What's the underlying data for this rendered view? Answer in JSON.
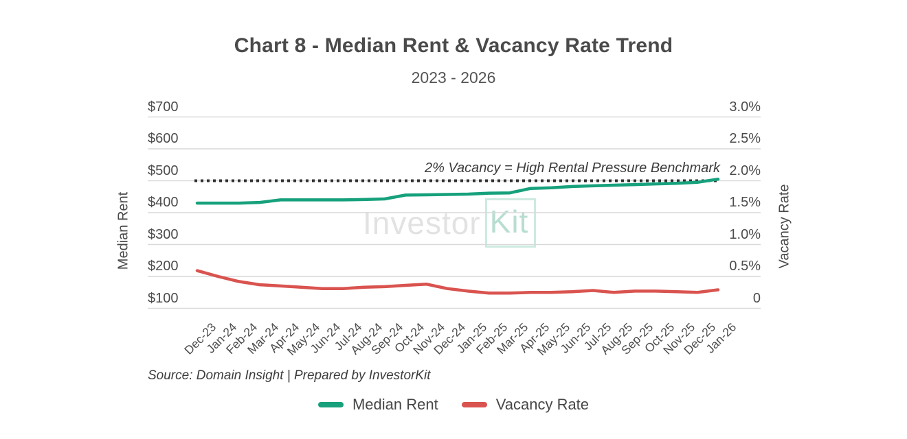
{
  "header": {
    "title": "Chart 8 - Median Rent & Vacancy Rate Trend",
    "subtitle": "2023 - 2026"
  },
  "axes": {
    "left_title": "Median Rent",
    "right_title": "Vacancy Rate",
    "left_ticks": [
      "$700",
      "$600",
      "$500",
      "$400",
      "$300",
      "$200",
      "$100"
    ],
    "right_ticks": [
      "3.0%",
      "2.5%",
      "2.0%",
      "1.5%",
      "1.0%",
      "0.5%",
      "0"
    ]
  },
  "annotation": {
    "benchmark_label": "2% Vacancy = High Rental Pressure Benchmark"
  },
  "watermark": {
    "part1": "Investor",
    "part2": "Kit"
  },
  "source": {
    "text": "Source: Domain Insight | Prepared by InvestorKit"
  },
  "legend": [
    {
      "label": "Median Rent",
      "color": "#16a17c"
    },
    {
      "label": "Vacancy Rate",
      "color": "#d9534f"
    }
  ],
  "colors": {
    "median_rent": "#16a17c",
    "vacancy_rate": "#d9534f",
    "benchmark": "#2f2f2f",
    "grid": "#d9d9d9",
    "title_text": "#4a4a4a"
  },
  "chart_data": {
    "type": "line",
    "title": "Chart 8 - Median Rent & Vacancy Rate Trend",
    "subtitle": "2023 - 2026",
    "grid": true,
    "legend_position": "bottom",
    "categories": [
      "Dec-23",
      "Jan-24",
      "Feb-24",
      "Mar-24",
      "Apr-24",
      "May-24",
      "Jun-24",
      "Jul-24",
      "Aug-24",
      "Sep-24",
      "Oct-24",
      "Nov-24",
      "Dec-24",
      "Jan-25",
      "Feb-25",
      "Mar-25",
      "Apr-25",
      "May-25",
      "Jun-25",
      "Jul-25",
      "Aug-25",
      "Sep-25",
      "Oct-25",
      "Nov-25",
      "Dec-25",
      "Jan-26"
    ],
    "series": [
      {
        "name": "Median Rent",
        "axis": "left",
        "color": "#16a17c",
        "values": [
          430,
          430,
          430,
          432,
          440,
          440,
          440,
          440,
          441,
          443,
          455,
          456,
          457,
          458,
          461,
          462,
          476,
          478,
          482,
          484,
          486,
          488,
          490,
          492,
          495,
          505
        ]
      },
      {
        "name": "Vacancy Rate",
        "axis": "right",
        "color": "#d9534f",
        "values": [
          0.59,
          0.5,
          0.42,
          0.37,
          0.35,
          0.33,
          0.31,
          0.31,
          0.33,
          0.34,
          0.36,
          0.38,
          0.31,
          0.27,
          0.24,
          0.24,
          0.25,
          0.25,
          0.26,
          0.28,
          0.25,
          0.27,
          0.27,
          0.26,
          0.25,
          0.29
        ]
      }
    ],
    "left_axis": {
      "label": "Median Rent",
      "unit": "$",
      "ticks": [
        700,
        600,
        500,
        400,
        300,
        200,
        100
      ],
      "range": [
        100,
        700
      ]
    },
    "right_axis": {
      "label": "Vacancy Rate",
      "unit": "%",
      "ticks": [
        3.0,
        2.5,
        2.0,
        1.5,
        1.0,
        0.5,
        0
      ],
      "range": [
        0,
        3.0
      ]
    },
    "benchmark": {
      "value_right_axis": 2.0,
      "label": "2% Vacancy = High Rental Pressure Benchmark",
      "style": "dotted"
    }
  }
}
